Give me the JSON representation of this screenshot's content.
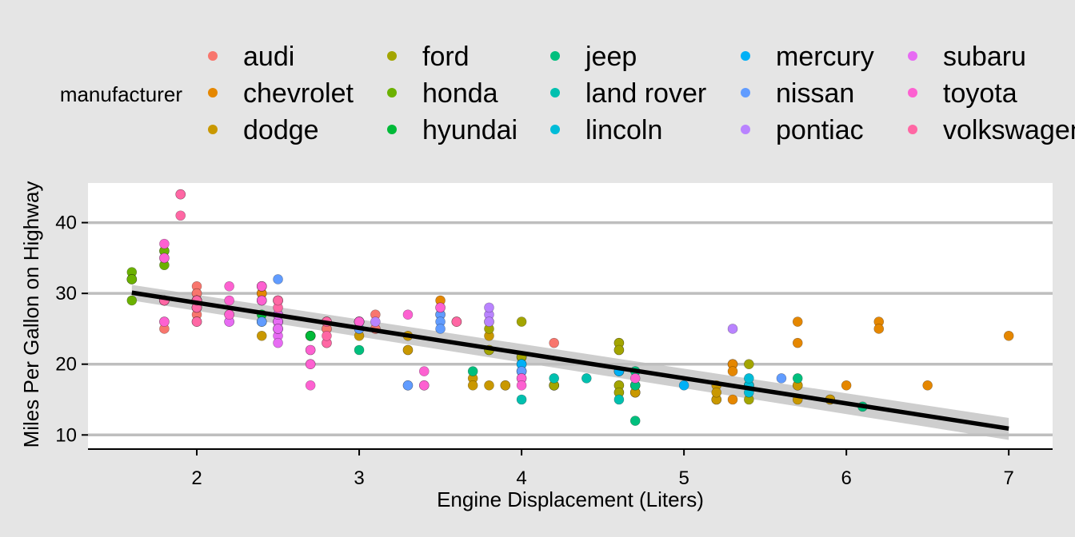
{
  "chart_data": {
    "type": "scatter",
    "xlabel": "Engine Displacement (Liters)",
    "ylabel": "Miles Per Gallon on Highway",
    "xlim": [
      1.33,
      7.27
    ],
    "ylim": [
      8.0,
      45.6
    ],
    "xticks": [
      2,
      3,
      4,
      5,
      6,
      7
    ],
    "yticks": [
      10,
      20,
      30,
      40
    ],
    "grid": "horizontal",
    "legend": {
      "title": "manufacturer",
      "position": "top",
      "entries": [
        "audi",
        "chevrolet",
        "dodge",
        "ford",
        "honda",
        "hyundai",
        "jeep",
        "land rover",
        "lincoln",
        "mercury",
        "nissan",
        "pontiac",
        "subaru",
        "toyota",
        "volkswagen"
      ]
    },
    "colors": {
      "audi": "#F8766D",
      "chevrolet": "#E58700",
      "dodge": "#C99800",
      "ford": "#A3A500",
      "honda": "#6BB100",
      "hyundai": "#00BA38",
      "jeep": "#00BF7D",
      "land rover": "#00C0AF",
      "lincoln": "#00BCD8",
      "mercury": "#00B0F6",
      "nissan": "#619CFF",
      "pontiac": "#B983FF",
      "subaru": "#E76BF3",
      "toyota": "#FD61D1",
      "volkswagen": "#FF67A4"
    },
    "trend": {
      "type": "linear",
      "x": [
        1.6,
        7.0
      ],
      "y": [
        30.1,
        10.9
      ],
      "ci_start": [
        29.0,
        31.2
      ],
      "ci_end": [
        9.3,
        12.4
      ]
    },
    "series": [
      {
        "name": "audi",
        "x": [
          1.8,
          1.8,
          2.0,
          2.0,
          2.8,
          2.8,
          3.1,
          1.8,
          1.8,
          2.0,
          2.0,
          2.8,
          2.8,
          3.1,
          3.1,
          3.6,
          4.2,
          2.0
        ],
        "y": [
          29,
          29,
          31,
          30,
          26,
          26,
          27,
          26,
          25,
          28,
          27,
          25,
          25,
          25,
          25,
          26,
          23,
          30
        ]
      },
      {
        "name": "chevrolet",
        "x": [
          5.3,
          5.3,
          5.3,
          5.7,
          6.0,
          5.7,
          5.7,
          6.2,
          6.2,
          7.0,
          5.3,
          6.5,
          3.5,
          3.5,
          2.2,
          2.4,
          2.4,
          2.4,
          2.4,
          2.4,
          3.6
        ],
        "y": [
          20,
          15,
          20,
          17,
          17,
          26,
          23,
          26,
          25,
          24,
          19,
          17,
          29,
          27,
          27,
          30,
          30,
          31,
          26,
          29,
          26
        ]
      },
      {
        "name": "dodge",
        "x": [
          2.4,
          3.0,
          3.3,
          3.3,
          3.3,
          3.8,
          3.8,
          3.8,
          4.0,
          3.7,
          3.7,
          3.9,
          3.9,
          4.7,
          4.7,
          4.7,
          5.2,
          5.2,
          5.7,
          5.9,
          4.7,
          4.7,
          5.2,
          5.2,
          5.7,
          5.9
        ],
        "y": [
          24,
          24,
          22,
          22,
          24,
          24,
          17,
          22,
          21,
          18,
          17,
          17,
          17,
          17,
          16,
          17,
          15,
          17,
          17,
          15,
          16,
          16,
          15,
          16,
          15,
          15
        ]
      },
      {
        "name": "ford",
        "x": [
          4.2,
          4.2,
          4.6,
          4.6,
          4.6,
          5.4,
          5.4,
          3.8,
          4.0,
          4.0,
          4.0,
          4.6,
          4.6,
          4.6,
          4.6,
          5.4,
          4.2,
          4.2,
          4.6,
          5.4,
          5.4,
          3.8,
          3.8,
          4.0,
          4.6,
          4.6
        ],
        "y": [
          17,
          17,
          17,
          16,
          17,
          15,
          17,
          22,
          21,
          19,
          21,
          19,
          19,
          22,
          23,
          17,
          17,
          17,
          16,
          17,
          20,
          26,
          25,
          26,
          23,
          22
        ]
      },
      {
        "name": "honda",
        "x": [
          1.6,
          1.6,
          1.6,
          1.6,
          1.6,
          1.8,
          1.8,
          1.8,
          2.0
        ],
        "y": [
          33,
          32,
          32,
          29,
          32,
          34,
          36,
          36,
          29
        ]
      },
      {
        "name": "hyundai",
        "x": [
          2.4,
          2.4,
          2.5,
          2.5,
          2.7,
          2.7,
          2.7,
          2.0,
          2.0,
          2.0,
          2.7,
          2.7
        ],
        "y": [
          26,
          27,
          26,
          26,
          24,
          24,
          24,
          28,
          26,
          29,
          24,
          24
        ]
      },
      {
        "name": "jeep",
        "x": [
          3.0,
          3.7,
          4.0,
          4.7,
          4.7,
          4.7,
          5.7,
          6.1
        ],
        "y": [
          22,
          19,
          20,
          17,
          12,
          19,
          18,
          14
        ]
      },
      {
        "name": "land rover",
        "x": [
          4.0,
          4.2,
          4.4,
          4.6
        ],
        "y": [
          15,
          18,
          18,
          15
        ]
      },
      {
        "name": "lincoln",
        "x": [
          5.4,
          5.4,
          5.4
        ],
        "y": [
          17,
          16,
          18
        ]
      },
      {
        "name": "mercury",
        "x": [
          4.0,
          4.0,
          4.6,
          5.0
        ],
        "y": [
          19,
          20,
          19,
          17
        ]
      },
      {
        "name": "nissan",
        "x": [
          2.5,
          2.5,
          3.5,
          3.5,
          3.0,
          3.0,
          3.5,
          3.3,
          3.3,
          4.0,
          5.6,
          2.4,
          2.4
        ],
        "y": [
          29,
          32,
          27,
          26,
          25,
          25,
          25,
          17,
          17,
          19,
          18,
          26,
          29
        ]
      },
      {
        "name": "pontiac",
        "x": [
          3.1,
          3.8,
          3.8,
          3.8,
          5.3
        ],
        "y": [
          26,
          27,
          26,
          28,
          25
        ]
      },
      {
        "name": "subaru",
        "x": [
          2.5,
          2.5,
          2.5,
          2.5,
          2.5,
          2.5,
          2.2,
          2.2,
          2.5,
          2.5,
          2.5,
          2.5,
          2.5,
          2.5
        ],
        "y": [
          25,
          24,
          27,
          25,
          26,
          23,
          26,
          26,
          26,
          26,
          25,
          27,
          25,
          27
        ]
      },
      {
        "name": "toyota",
        "x": [
          2.7,
          2.7,
          2.7,
          3.4,
          3.4,
          4.0,
          4.7,
          2.4,
          2.4,
          3.0,
          3.0,
          3.0,
          3.5,
          2.7,
          2.7,
          3.4,
          4.0,
          4.0,
          1.8,
          1.8,
          1.8,
          1.8,
          1.8,
          2.2,
          2.2,
          2.2,
          3.0,
          3.0,
          3.5,
          2.4,
          2.4,
          3.0,
          3.0,
          3.3
        ],
        "y": [
          20,
          17,
          22,
          17,
          19,
          18,
          18,
          31,
          29,
          26,
          26,
          26,
          28,
          22,
          20,
          17,
          18,
          17,
          35,
          37,
          35,
          29,
          26,
          29,
          27,
          31,
          26,
          26,
          28,
          31,
          31,
          26,
          26,
          27
        ]
      },
      {
        "name": "volkswagen",
        "x": [
          2.0,
          2.0,
          2.0,
          2.0,
          2.8,
          1.9,
          2.0,
          2.0,
          2.0,
          2.0,
          2.5,
          2.5,
          2.8,
          2.8,
          1.9,
          1.9,
          2.0,
          2.0,
          2.5,
          2.5,
          1.8,
          1.8,
          2.0,
          2.0,
          2.8,
          2.8,
          3.6
        ],
        "y": [
          29,
          29,
          28,
          29,
          23,
          44,
          29,
          26,
          29,
          28,
          29,
          29,
          23,
          24,
          44,
          41,
          29,
          26,
          28,
          29,
          29,
          29,
          28,
          29,
          26,
          26,
          26
        ]
      }
    ]
  }
}
